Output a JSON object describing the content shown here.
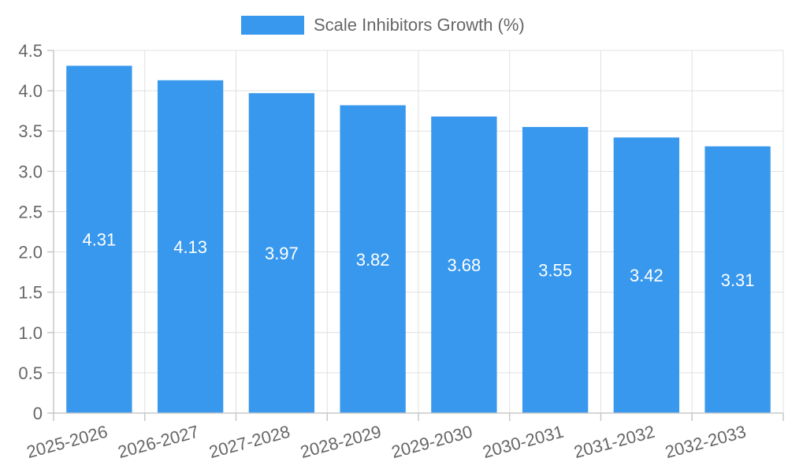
{
  "chart_data": {
    "type": "bar",
    "title": "",
    "xlabel": "",
    "ylabel": "",
    "legend": {
      "position": "top",
      "entries": [
        {
          "label": "Scale Inhibitors Growth (%)",
          "color": "#3898ee"
        }
      ]
    },
    "categories": [
      "2025-2026",
      "2026-2027",
      "2027-2028",
      "2028-2029",
      "2029-2030",
      "2030-2031",
      "2031-2032",
      "2032-2033"
    ],
    "series": [
      {
        "name": "Scale Inhibitors Growth (%)",
        "color": "#3898ee",
        "values": [
          4.31,
          4.13,
          3.97,
          3.82,
          3.68,
          3.55,
          3.42,
          3.31
        ],
        "data_labels": [
          "4.31",
          "4.13",
          "3.97",
          "3.82",
          "3.68",
          "3.55",
          "3.42",
          "3.31"
        ]
      }
    ],
    "ylim": [
      0,
      4.5
    ],
    "yticks": [
      "0",
      "0.5",
      "1.0",
      "1.5",
      "2.0",
      "2.5",
      "3.0",
      "3.5",
      "4.0",
      "4.5"
    ],
    "grid": true
  }
}
